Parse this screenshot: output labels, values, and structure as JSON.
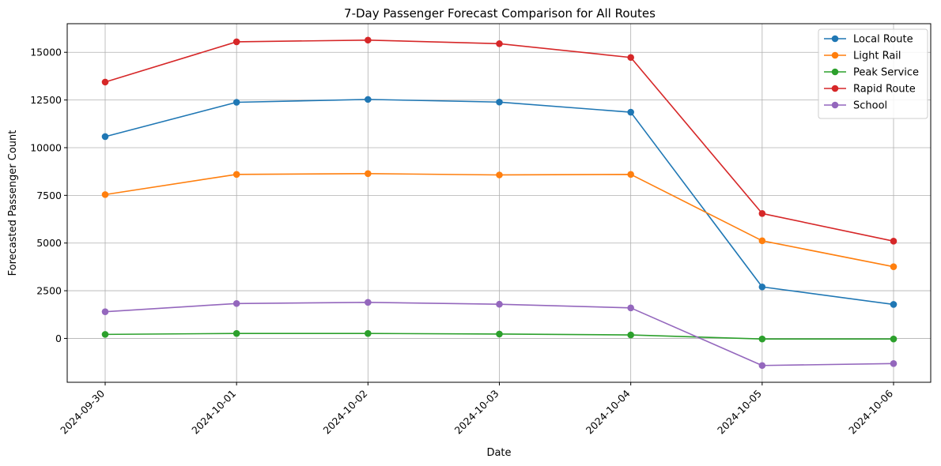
{
  "chart_data": {
    "type": "line",
    "title": "7-Day Passenger Forecast Comparison for All Routes",
    "xlabel": "Date",
    "ylabel": "Forecasted Passenger Count",
    "categories": [
      "2024-09-30",
      "2024-10-01",
      "2024-10-02",
      "2024-10-03",
      "2024-10-04",
      "2024-10-05",
      "2024-10-06"
    ],
    "ylim": [
      -2300,
      16500
    ],
    "yticks": [
      0,
      2500,
      5000,
      7500,
      10000,
      12500,
      15000
    ],
    "grid": true,
    "legend_position": "top-right",
    "series": [
      {
        "name": "Local Route",
        "color": "#1f77b4",
        "values": [
          10580,
          12380,
          12530,
          12390,
          11860,
          2700,
          1780
        ]
      },
      {
        "name": "Light Rail",
        "color": "#ff7f0e",
        "values": [
          7540,
          8600,
          8640,
          8570,
          8600,
          5120,
          3760
        ]
      },
      {
        "name": "Peak Service",
        "color": "#2ca02c",
        "values": [
          210,
          260,
          260,
          230,
          180,
          -30,
          -30
        ]
      },
      {
        "name": "Rapid Route",
        "color": "#d62728",
        "values": [
          13440,
          15550,
          15640,
          15450,
          14730,
          6550,
          5100
        ]
      },
      {
        "name": "School",
        "color": "#9467bd",
        "values": [
          1400,
          1830,
          1890,
          1790,
          1600,
          -1420,
          -1320
        ]
      }
    ]
  }
}
